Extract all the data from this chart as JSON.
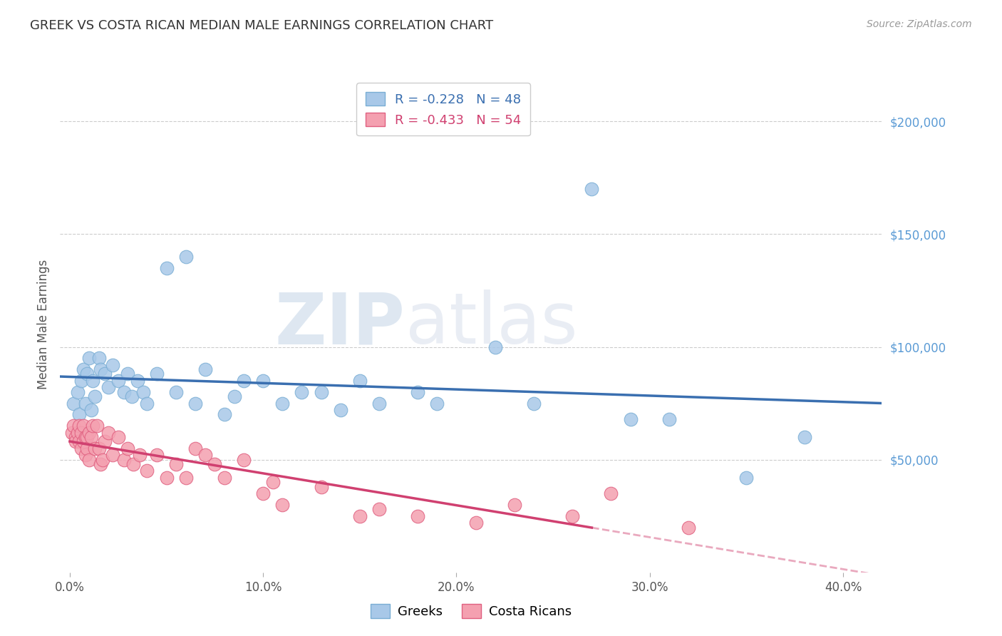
{
  "title": "GREEK VS COSTA RICAN MEDIAN MALE EARNINGS CORRELATION CHART",
  "source": "Source: ZipAtlas.com",
  "ylabel": "Median Male Earnings",
  "xlabel_ticks": [
    "0.0%",
    "10.0%",
    "20.0%",
    "30.0%",
    "40.0%"
  ],
  "xlabel_vals": [
    0.0,
    0.1,
    0.2,
    0.3,
    0.4
  ],
  "ylim": [
    0,
    220000
  ],
  "xlim": [
    -0.005,
    0.42
  ],
  "ytick_labels": [
    "$50,000",
    "$100,000",
    "$150,000",
    "$200,000"
  ],
  "ytick_vals": [
    50000,
    100000,
    150000,
    200000
  ],
  "background_color": "#ffffff",
  "watermark_zip": "ZIP",
  "watermark_atlas": "atlas",
  "greek_color": "#a8c8e8",
  "greek_edge_color": "#7aaed4",
  "costarican_color": "#f4a0b0",
  "costarican_edge_color": "#e06080",
  "greek_R": -0.228,
  "greek_N": 48,
  "costarican_R": -0.433,
  "costarican_N": 54,
  "greek_line_color": "#3a6fb0",
  "costarican_line_color": "#d04070",
  "greek_x": [
    0.002,
    0.004,
    0.005,
    0.006,
    0.007,
    0.008,
    0.009,
    0.01,
    0.011,
    0.012,
    0.013,
    0.015,
    0.016,
    0.018,
    0.02,
    0.022,
    0.025,
    0.028,
    0.03,
    0.032,
    0.035,
    0.038,
    0.04,
    0.045,
    0.05,
    0.055,
    0.06,
    0.065,
    0.07,
    0.08,
    0.085,
    0.09,
    0.1,
    0.11,
    0.12,
    0.13,
    0.14,
    0.15,
    0.16,
    0.18,
    0.19,
    0.22,
    0.24,
    0.27,
    0.29,
    0.31,
    0.35,
    0.38
  ],
  "greek_y": [
    75000,
    80000,
    70000,
    85000,
    90000,
    75000,
    88000,
    95000,
    72000,
    85000,
    78000,
    95000,
    90000,
    88000,
    82000,
    92000,
    85000,
    80000,
    88000,
    78000,
    85000,
    80000,
    75000,
    88000,
    135000,
    80000,
    140000,
    75000,
    90000,
    70000,
    78000,
    85000,
    85000,
    75000,
    80000,
    80000,
    72000,
    85000,
    75000,
    80000,
    75000,
    100000,
    75000,
    170000,
    68000,
    68000,
    42000,
    60000
  ],
  "costarican_x": [
    0.001,
    0.002,
    0.003,
    0.003,
    0.004,
    0.005,
    0.005,
    0.006,
    0.006,
    0.007,
    0.007,
    0.008,
    0.008,
    0.009,
    0.009,
    0.01,
    0.01,
    0.011,
    0.012,
    0.013,
    0.014,
    0.015,
    0.016,
    0.017,
    0.018,
    0.02,
    0.022,
    0.025,
    0.028,
    0.03,
    0.033,
    0.036,
    0.04,
    0.045,
    0.05,
    0.055,
    0.06,
    0.065,
    0.07,
    0.075,
    0.08,
    0.09,
    0.1,
    0.105,
    0.11,
    0.13,
    0.15,
    0.16,
    0.18,
    0.21,
    0.23,
    0.26,
    0.28,
    0.32
  ],
  "costarican_y": [
    62000,
    65000,
    60000,
    58000,
    62000,
    65000,
    58000,
    62000,
    55000,
    65000,
    58000,
    60000,
    52000,
    60000,
    55000,
    62000,
    50000,
    60000,
    65000,
    55000,
    65000,
    55000,
    48000,
    50000,
    58000,
    62000,
    52000,
    60000,
    50000,
    55000,
    48000,
    52000,
    45000,
    52000,
    42000,
    48000,
    42000,
    55000,
    52000,
    48000,
    42000,
    50000,
    35000,
    40000,
    30000,
    38000,
    25000,
    28000,
    25000,
    22000,
    30000,
    25000,
    35000,
    20000
  ]
}
